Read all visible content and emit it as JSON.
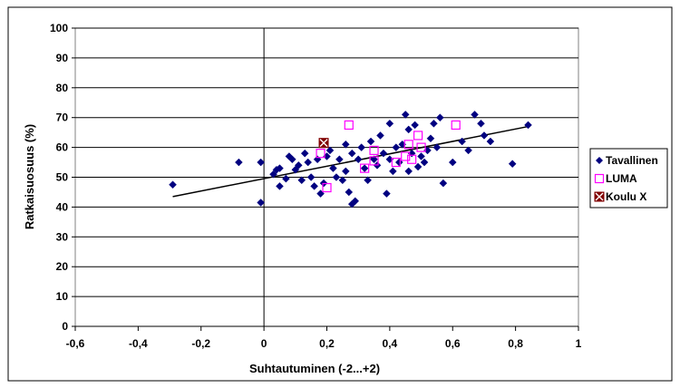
{
  "chart_data": {
    "type": "scatter",
    "title": "",
    "xlabel": "Suhtautuminen  (-2...+2)",
    "ylabel": "Ratkaisuosuus (%)",
    "xlim": [
      -0.6,
      1.0
    ],
    "ylim": [
      0,
      100
    ],
    "x_ticks": [
      "-0,6",
      "-0,4",
      "-0,2",
      "0",
      "0,2",
      "0,4",
      "0,6",
      "0,8",
      "1"
    ],
    "y_ticks": [
      "0",
      "10",
      "20",
      "30",
      "40",
      "50",
      "60",
      "70",
      "80",
      "90",
      "100"
    ],
    "grid": "horizontal",
    "legend_position": "right",
    "series": [
      {
        "name": "Tavallinen",
        "marker": "diamond",
        "color": "#000080",
        "points": [
          [
            -0.29,
            47.5
          ],
          [
            -0.08,
            55
          ],
          [
            -0.01,
            55
          ],
          [
            -0.01,
            41.5
          ],
          [
            0.03,
            51
          ],
          [
            0.04,
            52.5
          ],
          [
            0.05,
            47
          ],
          [
            0.05,
            53
          ],
          [
            0.07,
            49.5
          ],
          [
            0.08,
            57
          ],
          [
            0.09,
            56
          ],
          [
            0.1,
            52.5
          ],
          [
            0.11,
            54
          ],
          [
            0.12,
            49
          ],
          [
            0.13,
            58
          ],
          [
            0.14,
            55
          ],
          [
            0.15,
            50
          ],
          [
            0.16,
            47
          ],
          [
            0.17,
            56
          ],
          [
            0.18,
            44.5
          ],
          [
            0.19,
            48
          ],
          [
            0.2,
            57
          ],
          [
            0.21,
            59
          ],
          [
            0.22,
            53
          ],
          [
            0.23,
            50
          ],
          [
            0.24,
            56
          ],
          [
            0.25,
            49
          ],
          [
            0.26,
            61
          ],
          [
            0.26,
            52
          ],
          [
            0.27,
            45
          ],
          [
            0.28,
            41
          ],
          [
            0.28,
            58
          ],
          [
            0.29,
            42
          ],
          [
            0.3,
            56
          ],
          [
            0.31,
            60
          ],
          [
            0.32,
            53
          ],
          [
            0.33,
            49
          ],
          [
            0.34,
            62
          ],
          [
            0.35,
            56
          ],
          [
            0.36,
            54
          ],
          [
            0.37,
            64
          ],
          [
            0.38,
            58
          ],
          [
            0.39,
            44.5
          ],
          [
            0.4,
            56
          ],
          [
            0.4,
            68
          ],
          [
            0.41,
            52
          ],
          [
            0.42,
            60
          ],
          [
            0.43,
            55
          ],
          [
            0.44,
            61
          ],
          [
            0.45,
            71
          ],
          [
            0.46,
            66
          ],
          [
            0.46,
            52
          ],
          [
            0.47,
            58
          ],
          [
            0.48,
            67.5
          ],
          [
            0.49,
            53.5
          ],
          [
            0.5,
            57
          ],
          [
            0.51,
            55
          ],
          [
            0.52,
            59
          ],
          [
            0.53,
            63
          ],
          [
            0.54,
            68
          ],
          [
            0.55,
            60
          ],
          [
            0.56,
            70
          ],
          [
            0.57,
            48
          ],
          [
            0.6,
            55
          ],
          [
            0.63,
            62
          ],
          [
            0.65,
            59
          ],
          [
            0.67,
            71
          ],
          [
            0.69,
            68
          ],
          [
            0.7,
            64
          ],
          [
            0.72,
            62
          ],
          [
            0.79,
            54.5
          ],
          [
            0.84,
            67.5
          ]
        ]
      },
      {
        "name": "LUMA",
        "marker": "square-open",
        "color": "#ff00ff",
        "points": [
          [
            0.18,
            58
          ],
          [
            0.2,
            46.5
          ],
          [
            0.27,
            67.5
          ],
          [
            0.32,
            53
          ],
          [
            0.35,
            55.5
          ],
          [
            0.35,
            59
          ],
          [
            0.42,
            55
          ],
          [
            0.45,
            57
          ],
          [
            0.46,
            61
          ],
          [
            0.47,
            56
          ],
          [
            0.49,
            64
          ],
          [
            0.5,
            60
          ],
          [
            0.61,
            67.5
          ]
        ]
      },
      {
        "name": "Koulu X",
        "marker": "square-x",
        "color": "#800000",
        "points": [
          [
            0.19,
            61.5
          ]
        ]
      }
    ],
    "trendline": {
      "type": "linear",
      "from": [
        -0.29,
        43.5
      ],
      "to": [
        0.84,
        67.0
      ]
    }
  }
}
